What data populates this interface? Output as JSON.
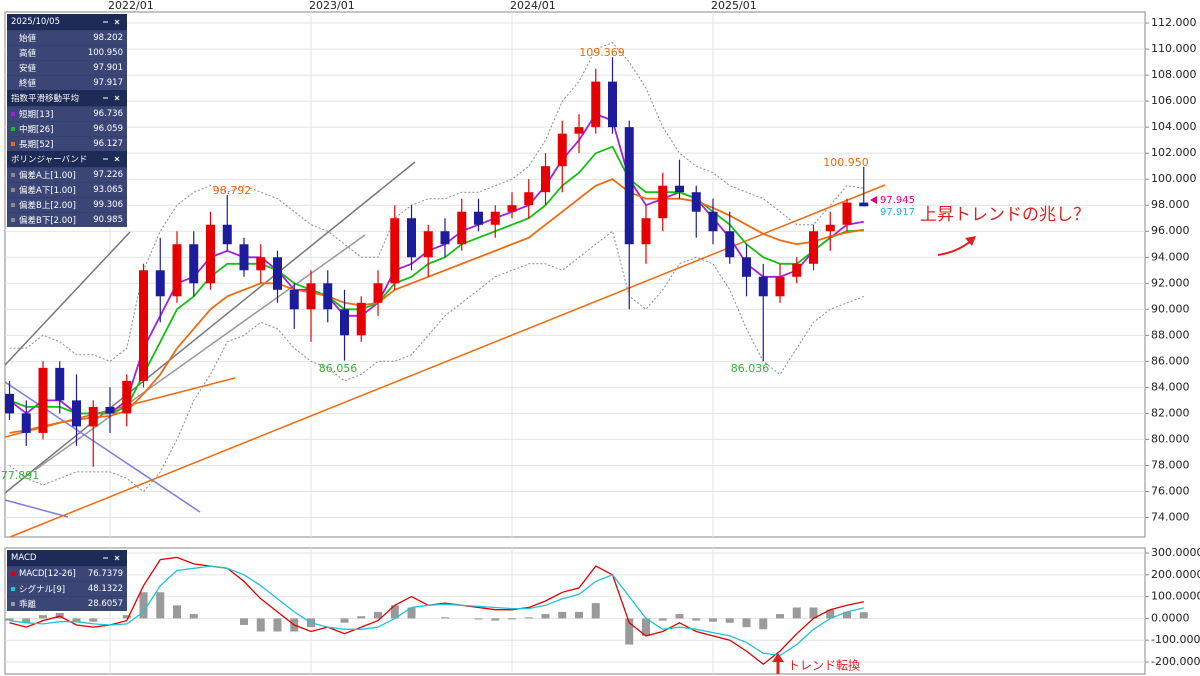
{
  "chart_data": [
    {
      "type": "candlestick",
      "x": [
        "2021/07",
        "2021/08",
        "2021/09",
        "2021/10",
        "2021/11",
        "2021/12",
        "2022/01",
        "2022/02",
        "2022/03",
        "2022/04",
        "2022/05",
        "2022/06",
        "2022/07",
        "2022/08",
        "2022/09",
        "2022/10",
        "2022/11",
        "2022/12",
        "2023/01",
        "2023/02",
        "2023/03",
        "2023/04",
        "2023/05",
        "2023/06",
        "2023/07",
        "2023/08",
        "2023/09",
        "2023/10",
        "2023/11",
        "2023/12",
        "2024/01",
        "2024/02",
        "2024/03",
        "2024/04",
        "2024/05",
        "2024/06",
        "2024/07",
        "2024/08",
        "2024/09",
        "2024/10",
        "2024/11",
        "2024/12",
        "2025/01",
        "2025/02",
        "2025/03",
        "2025/04",
        "2025/05",
        "2025/06",
        "2025/07",
        "2025/08",
        "2025/09",
        "2025/10"
      ],
      "open": [
        83.5,
        82,
        80.5,
        85.5,
        83,
        81,
        82.5,
        82,
        84.5,
        93,
        91,
        95,
        92,
        96.5,
        95,
        93,
        94,
        91.5,
        90,
        92,
        90,
        88,
        90.5,
        92,
        97,
        94,
        96,
        95,
        97.5,
        96.5,
        97.5,
        98,
        99,
        101,
        103.5,
        104,
        107.5,
        104,
        95,
        97,
        99.5,
        99,
        97.5,
        96,
        94,
        92.5,
        91,
        92.5,
        93.5,
        96,
        96.5,
        98.202
      ],
      "high": [
        84.5,
        83,
        86,
        86,
        85,
        83,
        84,
        85,
        93.5,
        95.5,
        96,
        96,
        97.5,
        98.792,
        95.5,
        95,
        94.5,
        92,
        93,
        93,
        91.5,
        91,
        93,
        98,
        98,
        96.5,
        97,
        98.5,
        98.5,
        98,
        99,
        100,
        102,
        104.5,
        105,
        108.5,
        109.369,
        104.5,
        98,
        100.5,
        101.5,
        99.5,
        98.5,
        97.5,
        95,
        93.5,
        93.5,
        94,
        96.5,
        97.5,
        98.5,
        100.95
      ],
      "low": [
        81.5,
        79.5,
        80,
        82,
        79.5,
        77.891,
        80.5,
        81,
        84,
        89,
        90.5,
        91,
        91.5,
        94.5,
        92.5,
        92,
        90.5,
        88.5,
        87.5,
        89,
        86.056,
        87.5,
        89.5,
        91.5,
        93,
        92.5,
        94,
        94.5,
        96,
        95.5,
        97,
        97,
        98,
        99,
        102,
        103.5,
        103.5,
        90,
        93.5,
        96,
        98.5,
        95.5,
        95,
        93.5,
        91,
        86.036,
        90.5,
        92,
        93,
        94.5,
        96,
        97.901
      ],
      "close": [
        82,
        80.5,
        85.5,
        83,
        81,
        82.5,
        82,
        84.5,
        93,
        91,
        95,
        92,
        96.5,
        95,
        93,
        94,
        91.5,
        90,
        92,
        90,
        88,
        90.5,
        92,
        97,
        94,
        96,
        95,
        97.5,
        96.5,
        97.5,
        98,
        99,
        101,
        103.5,
        104,
        107.5,
        104,
        95,
        97,
        99.5,
        99,
        97.5,
        96,
        94,
        92.5,
        91,
        92.5,
        93.5,
        96,
        96.5,
        98.202,
        97.917
      ],
      "up_color": "#e60000",
      "down_color": "#1c1c9c",
      "series": [
        {
          "name": "短期[13]",
          "color": "#a21fe0",
          "values": [
            83,
            82,
            83,
            83,
            82,
            82,
            82,
            83,
            87,
            89.5,
            92,
            92.5,
            94,
            94.5,
            94,
            94,
            93,
            91.5,
            91.5,
            91,
            89.5,
            89.5,
            90.5,
            93,
            93.5,
            94.5,
            95,
            96,
            96.5,
            97,
            97.5,
            98,
            99.5,
            101.5,
            103,
            105,
            104.5,
            100,
            98,
            98.5,
            99,
            98.5,
            97,
            95.5,
            93.5,
            92.5,
            92.5,
            93,
            94.5,
            95.5,
            96.5,
            96.736
          ]
        },
        {
          "name": "中期[26]",
          "color": "#12c012",
          "values": [
            83,
            82.5,
            82.5,
            82.5,
            82,
            82,
            82,
            82.5,
            85,
            87.5,
            90,
            91,
            92.5,
            93.5,
            93.5,
            93.5,
            93,
            92,
            91.5,
            91,
            90,
            90,
            90.5,
            92,
            92.5,
            93.5,
            94,
            95,
            95.5,
            96,
            96.5,
            97,
            98,
            99.5,
            100.5,
            102,
            102.5,
            100,
            99,
            99,
            99,
            98.5,
            97.5,
            96.5,
            95,
            94,
            93.5,
            93.5,
            94.5,
            95.5,
            96,
            96.059
          ]
        },
        {
          "name": "長期[52]",
          "color": "#f26a10",
          "values": [
            80.5,
            80.7,
            81,
            81.3,
            81.5,
            81.7,
            81.8,
            82.2,
            83.5,
            85,
            87,
            88.5,
            90,
            91,
            91.5,
            92,
            92,
            91.5,
            91.3,
            91,
            90.5,
            90.3,
            90.5,
            91.5,
            92,
            92.5,
            93,
            93.5,
            94,
            94.5,
            95,
            95.5,
            96.5,
            97.5,
            98.5,
            99.5,
            100,
            99,
            98.5,
            98.5,
            98.5,
            98.3,
            97.8,
            97.2,
            96.5,
            95.8,
            95.3,
            95,
            95.2,
            95.6,
            95.9,
            96.127
          ]
        }
      ],
      "bands": [
        {
          "name": "偏差B上[2.00]",
          "color": "#8a8a8a",
          "values": [
            87,
            87,
            88,
            87.5,
            86.5,
            86.5,
            86,
            87,
            93,
            96,
            98,
            99,
            99.5,
            99,
            99.5,
            99,
            98.5,
            97.5,
            96.5,
            96,
            95,
            94,
            94,
            97,
            98,
            98.5,
            98.5,
            99,
            99,
            99.5,
            100,
            101,
            103,
            106,
            107.5,
            110,
            110.5,
            109,
            107,
            104,
            102,
            101,
            100.5,
            99.5,
            99,
            98.5,
            97.5,
            96.5,
            96.5,
            98,
            99.5,
            99.306
          ]
        },
        {
          "name": "偏差B下[2.00]",
          "color": "#8a8a8a",
          "values": [
            78,
            77,
            76.5,
            77,
            77.5,
            77.5,
            77.5,
            77,
            76,
            77.5,
            80,
            83,
            85,
            87.5,
            88,
            89,
            88.5,
            87,
            86,
            85.5,
            84.5,
            85,
            86,
            86,
            86.5,
            88,
            89.5,
            90.5,
            91.5,
            92.5,
            93,
            93.5,
            93.5,
            93,
            94,
            95,
            96,
            91,
            90,
            91.5,
            93.5,
            94,
            93.5,
            91.5,
            88.5,
            86,
            85,
            87,
            89,
            90,
            90.5,
            90.985
          ]
        }
      ],
      "ylim": [
        72.5,
        112.85
      ],
      "yticks": [
        {
          "value": 74,
          "label": "74.000"
        },
        {
          "value": 76,
          "label": "76.000"
        },
        {
          "value": 78,
          "label": "78.000"
        },
        {
          "value": 80,
          "label": "80.000"
        },
        {
          "value": 82,
          "label": "82.000"
        },
        {
          "value": 84,
          "label": "84.000"
        },
        {
          "value": 86,
          "label": "86.000"
        },
        {
          "value": 88,
          "label": "88.000"
        },
        {
          "value": 90,
          "label": "90.000"
        },
        {
          "value": 92,
          "label": "92.000"
        },
        {
          "value": 94,
          "label": "94.000"
        },
        {
          "value": 96,
          "label": "96.000"
        },
        {
          "value": 98,
          "label": "98.000"
        },
        {
          "value": 100,
          "label": "100.000"
        },
        {
          "value": 102,
          "label": "102.000"
        },
        {
          "value": 104,
          "label": "104.000"
        },
        {
          "value": 106,
          "label": "106.000"
        },
        {
          "value": 108,
          "label": "108.000"
        },
        {
          "value": 110,
          "label": "110.000"
        },
        {
          "value": 112,
          "label": "112.000"
        }
      ],
      "xticks": [
        "2022/01",
        "2023/01",
        "2024/01",
        "2025/01"
      ],
      "grid": true,
      "annotations": [
        "98.792",
        "109.369",
        "100.950",
        "86.056",
        "86.036",
        "77.891",
        "97.945",
        "97.917",
        "上昇トレンドの兆し？"
      ]
    },
    {
      "type": "line",
      "series": [
        {
          "name": "MACD[12-26]",
          "color": "#e00000",
          "values": [
            -20,
            -40,
            -10,
            10,
            -30,
            -40,
            -30,
            -10,
            150,
            270,
            280,
            250,
            240,
            230,
            170,
            90,
            30,
            -30,
            -60,
            -40,
            -70,
            -40,
            -10,
            60,
            100,
            60,
            70,
            60,
            50,
            40,
            40,
            50,
            80,
            120,
            140,
            240,
            200,
            -20,
            -80,
            -60,
            -20,
            -60,
            -80,
            -100,
            -150,
            -210,
            -150,
            -70,
            0,
            40,
            60,
            76.7379
          ]
        },
        {
          "name": "シグナル[9]",
          "color": "#1fc3d6",
          "values": [
            -10,
            -20,
            -25,
            -15,
            -15,
            -25,
            -30,
            -25,
            30,
            150,
            220,
            230,
            240,
            230,
            200,
            150,
            90,
            30,
            -20,
            -40,
            -50,
            -50,
            -40,
            0,
            50,
            60,
            65,
            60,
            55,
            50,
            45,
            45,
            60,
            90,
            110,
            170,
            200,
            100,
            0,
            -50,
            -40,
            -50,
            -65,
            -80,
            -110,
            -160,
            -170,
            -120,
            -50,
            0,
            30,
            48.1322
          ]
        },
        {
          "name": "乖離",
          "color": "#9a9a9a",
          "style": "bar",
          "values": [
            -10,
            -20,
            15,
            25,
            -15,
            -15,
            0,
            15,
            120,
            120,
            60,
            20,
            0,
            0,
            -30,
            -60,
            -60,
            -60,
            -40,
            0,
            -20,
            10,
            30,
            60,
            50,
            0,
            5,
            0,
            -5,
            -10,
            -5,
            5,
            20,
            30,
            30,
            70,
            0,
            -120,
            -80,
            -10,
            20,
            -10,
            -15,
            -20,
            -40,
            -50,
            20,
            50,
            50,
            40,
            30,
            28.6057
          ]
        }
      ],
      "ylim": [
        -255,
        323
      ],
      "yticks": [
        {
          "value": -200,
          "label": "-200.0000"
        },
        {
          "value": -100,
          "label": "-100.0000"
        },
        {
          "value": 0,
          "label": "0.0000"
        },
        {
          "value": 100,
          "label": "100.0000"
        },
        {
          "value": 200,
          "label": "200.0000"
        },
        {
          "value": 300,
          "label": "300.0000"
        }
      ],
      "grid": true,
      "annotations": [
        "トレンド転換"
      ]
    }
  ],
  "data_window": {
    "date": "2025/10/05",
    "ohlc": [
      [
        "始値",
        "98.202"
      ],
      [
        "高値",
        "100.950"
      ],
      [
        "安値",
        "97.901"
      ],
      [
        "終値",
        "97.917"
      ]
    ],
    "ema_title": "指数平滑移動平均",
    "bb_title": "ボリンジャーバンド",
    "bands_a": [
      [
        "偏差A上[1.00]",
        "97.226"
      ],
      [
        "偏差A下[1.00]",
        "93.065"
      ]
    ],
    "macd_title": "MACD"
  }
}
